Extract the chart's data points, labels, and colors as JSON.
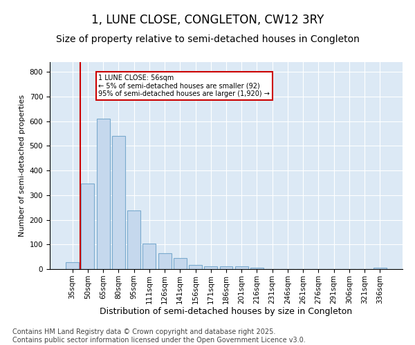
{
  "title": "1, LUNE CLOSE, CONGLETON, CW12 3RY",
  "subtitle": "Size of property relative to semi-detached houses in Congleton",
  "xlabel": "Distribution of semi-detached houses by size in Congleton",
  "ylabel": "Number of semi-detached properties",
  "categories": [
    "35sqm",
    "50sqm",
    "65sqm",
    "80sqm",
    "95sqm",
    "111sqm",
    "126sqm",
    "141sqm",
    "156sqm",
    "171sqm",
    "186sqm",
    "201sqm",
    "216sqm",
    "231sqm",
    "246sqm",
    "261sqm",
    "276sqm",
    "291sqm",
    "306sqm",
    "321sqm",
    "336sqm"
  ],
  "values": [
    28,
    348,
    610,
    540,
    237,
    103,
    65,
    45,
    17,
    10,
    10,
    10,
    7,
    0,
    0,
    0,
    0,
    0,
    0,
    0,
    5
  ],
  "bar_color": "#c5d8ed",
  "bar_edge_color": "#7aaace",
  "vline_x": 1,
  "vline_color": "#cc0000",
  "annotation_title": "1 LUNE CLOSE: 56sqm",
  "annotation_line1": "← 5% of semi-detached houses are smaller (92)",
  "annotation_line2": "95% of semi-detached houses are larger (1,920) →",
  "annotation_box_color": "#cc0000",
  "ylim": [
    0,
    840
  ],
  "yticks": [
    0,
    100,
    200,
    300,
    400,
    500,
    600,
    700,
    800
  ],
  "plot_bg_color": "#dce9f5",
  "footer_line1": "Contains HM Land Registry data © Crown copyright and database right 2025.",
  "footer_line2": "Contains public sector information licensed under the Open Government Licence v3.0.",
  "title_fontsize": 12,
  "subtitle_fontsize": 10,
  "xlabel_fontsize": 9,
  "ylabel_fontsize": 8,
  "tick_fontsize": 7.5,
  "footer_fontsize": 7
}
